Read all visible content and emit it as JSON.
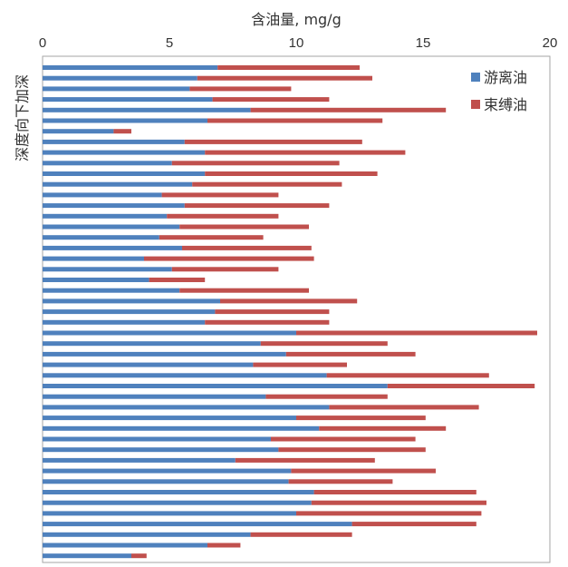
{
  "chart_data": {
    "type": "bar",
    "orientation": "horizontal",
    "stacked": true,
    "x_axis_position": "top",
    "xlabel": "含油量, mg/g",
    "ylabel": "深度向下加深",
    "xlim": [
      0,
      20
    ],
    "x_ticks": [
      0,
      5,
      10,
      15,
      20
    ],
    "grid": false,
    "legend_position": "top-right",
    "series": [
      {
        "name": "游离油",
        "color": "#4f81bd",
        "values": [
          6.9,
          6.1,
          5.8,
          6.7,
          8.2,
          6.5,
          2.8,
          5.6,
          6.4,
          5.1,
          6.4,
          5.9,
          4.7,
          5.6,
          4.9,
          5.4,
          4.6,
          5.5,
          4.0,
          5.1,
          4.2,
          5.4,
          7.0,
          6.8,
          6.4,
          10.0,
          8.6,
          9.6,
          8.3,
          11.2,
          13.6,
          8.8,
          11.3,
          10.0,
          10.9,
          9.0,
          9.3,
          7.6,
          9.8,
          9.7,
          10.7,
          10.6,
          10.0,
          12.2,
          8.2,
          6.5,
          3.5
        ]
      },
      {
        "name": "束缚油",
        "color": "#c0504d",
        "values": [
          5.6,
          6.9,
          4.0,
          4.6,
          7.7,
          6.9,
          0.7,
          7.0,
          7.9,
          6.6,
          6.8,
          5.9,
          4.6,
          5.7,
          4.4,
          5.1,
          4.1,
          5.1,
          6.7,
          4.2,
          2.2,
          5.1,
          5.4,
          4.5,
          4.9,
          9.5,
          5.0,
          5.1,
          3.7,
          6.4,
          5.8,
          4.8,
          5.9,
          5.1,
          5.0,
          5.7,
          5.8,
          5.5,
          5.7,
          4.1,
          6.4,
          6.9,
          7.3,
          4.9,
          4.0,
          1.3,
          0.6
        ]
      }
    ]
  },
  "legend": {
    "items": [
      {
        "label": "游离油",
        "color": "#4f81bd"
      },
      {
        "label": "束缚油",
        "color": "#c0504d"
      }
    ]
  }
}
